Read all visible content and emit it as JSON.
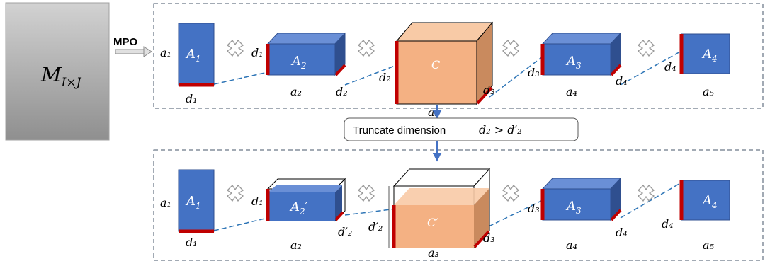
{
  "source_matrix": {
    "label": "M",
    "subscript": "I×J"
  },
  "operation_label": "MPO",
  "truncation_label": {
    "text": "Truncate dimension",
    "formula": "d₂ > d′₂"
  },
  "top_row": {
    "tensors": [
      "A",
      "A",
      "C",
      "A",
      "A"
    ],
    "tensor_subscripts": [
      "1",
      "2",
      "",
      "3",
      "4"
    ],
    "row_dims": [
      "a₁",
      "a₂",
      "a₃",
      "a₄",
      "a₅"
    ],
    "bond_dims": [
      "d₁",
      "d₁",
      "d₂",
      "d₂",
      "d₃",
      "d₃",
      "d₄",
      "d₄"
    ]
  },
  "bottom_row": {
    "tensors": [
      "A",
      "A",
      "C′",
      "A",
      "A"
    ],
    "tensor_subscripts": [
      "1",
      "2",
      "",
      "3",
      "4"
    ],
    "tensor_prime": [
      "",
      "′",
      "",
      "",
      ""
    ],
    "row_dims": [
      "a₁",
      "a₂",
      "a₃",
      "a₄",
      "a₅"
    ],
    "bond_dims": [
      "d₁",
      "d₁",
      "d′₂",
      "d′₂",
      "d₃",
      "d₃",
      "d₄",
      "d₄"
    ]
  },
  "colors": {
    "tensor_blue": "#4472c4",
    "tensor_blue_dark": "#2f4f8f",
    "core_orange": "#f4b183",
    "core_orange_dark": "#c98a5e",
    "bond_red": "#c00000",
    "dash_blue": "#2e75b6",
    "frame_dash": "#44546a",
    "arrow_blue": "#4472c4"
  },
  "icons": [
    "times-operator-icon",
    "arrow-right-icon",
    "arrow-down-icon"
  ]
}
